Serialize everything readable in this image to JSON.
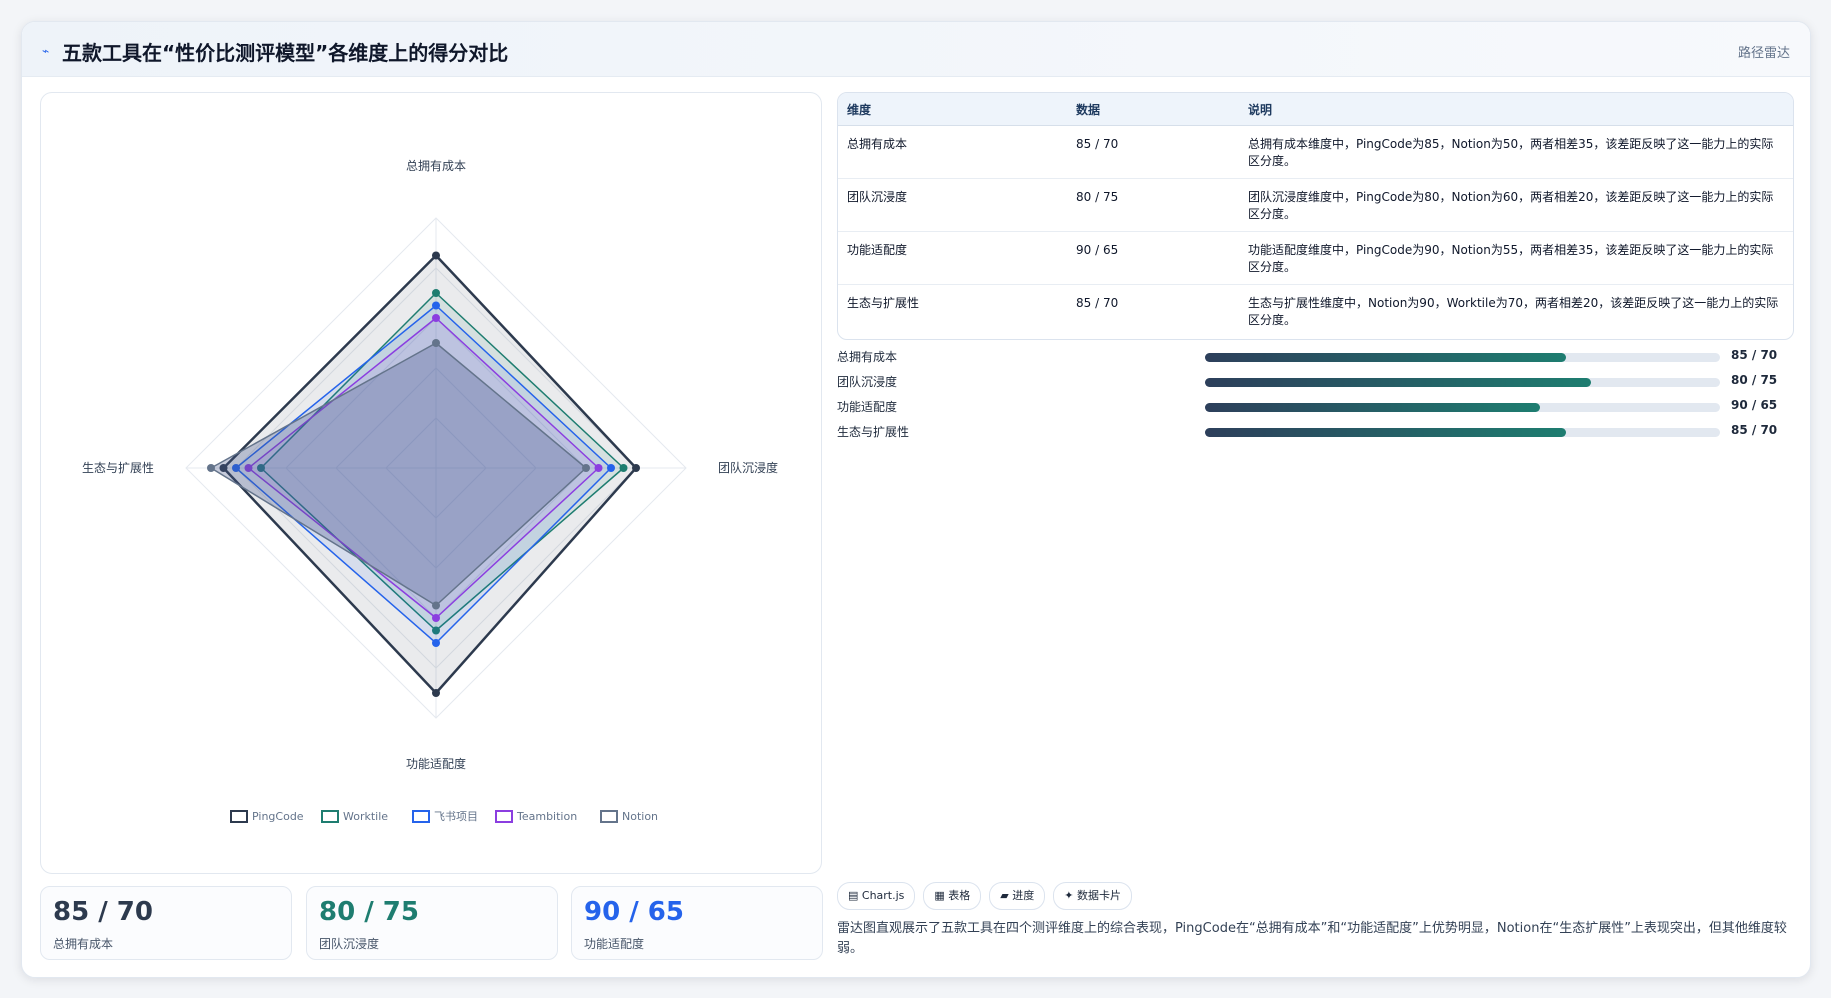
{
  "header": {
    "title": "五款工具在“性价比测评模型”各维度上的得分对比",
    "tag": "路径雷达"
  },
  "chart_data": {
    "type": "radar",
    "axes": [
      "总拥有成本",
      "团队沉浸度",
      "功能适配度",
      "生态与扩展性"
    ],
    "range": [
      0,
      100
    ],
    "series": [
      {
        "name": "PingCode",
        "values": [
          85,
          80,
          90,
          85
        ],
        "color": "#2d3a4e"
      },
      {
        "name": "Worktile",
        "values": [
          70,
          75,
          65,
          70
        ],
        "color": "#1e7d70"
      },
      {
        "name": "飞书项目",
        "values": [
          65,
          70,
          70,
          80
        ],
        "color": "#2563eb"
      },
      {
        "name": "Teambition",
        "values": [
          60,
          65,
          60,
          75
        ],
        "color": "#8b3ee0"
      },
      {
        "name": "Notion",
        "values": [
          50,
          60,
          55,
          90
        ],
        "color": "#64748b"
      }
    ]
  },
  "kpis": [
    {
      "value": "85 / 70",
      "label": "总拥有成本",
      "color": "#2d3a4e"
    },
    {
      "value": "80 / 75",
      "label": "团队沉浸度",
      "color": "#1e7d70"
    },
    {
      "value": "90 / 65",
      "label": "功能适配度",
      "color": "#2563eb"
    }
  ],
  "table": {
    "headers": [
      "维度",
      "数据",
      "说明"
    ],
    "rows": [
      [
        "总拥有成本",
        "85 / 70",
        "总拥有成本维度中，PingCode为85，Notion为50，两者相差35，该差距反映了这一能力上的实际区分度。"
      ],
      [
        "团队沉浸度",
        "80 / 75",
        "团队沉浸度维度中，PingCode为80，Notion为60，两者相差20，该差距反映了这一能力上的实际区分度。"
      ],
      [
        "功能适配度",
        "90 / 65",
        "功能适配度维度中，PingCode为90，Notion为55，两者相差35，该差距反映了这一能力上的实际区分度。"
      ],
      [
        "生态与扩展性",
        "85 / 70",
        "生态与扩展性维度中，Notion为90，Worktile为70，两者相差20，该差距反映了这一能力上的实际区分度。"
      ]
    ]
  },
  "progress": [
    {
      "label": "总拥有成本",
      "value": "85 / 70",
      "fraction": 0.7
    },
    {
      "label": "团队沉浸度",
      "value": "80 / 75",
      "fraction": 0.75
    },
    {
      "label": "功能适配度",
      "value": "90 / 65",
      "fraction": 0.65
    },
    {
      "label": "生态与扩展性",
      "value": "85 / 70",
      "fraction": 0.7
    }
  ],
  "chips": [
    "▤ Chart.js",
    "▦ 表格",
    "▰ 进度",
    "✦ 数据卡片"
  ],
  "summary": "雷达图直观展示了五款工具在四个测评维度上的综合表现，PingCode在“总拥有成本”和“功能适配度”上优势明显，Notion在“生态扩展性”上表现突出，但其他维度较弱。"
}
